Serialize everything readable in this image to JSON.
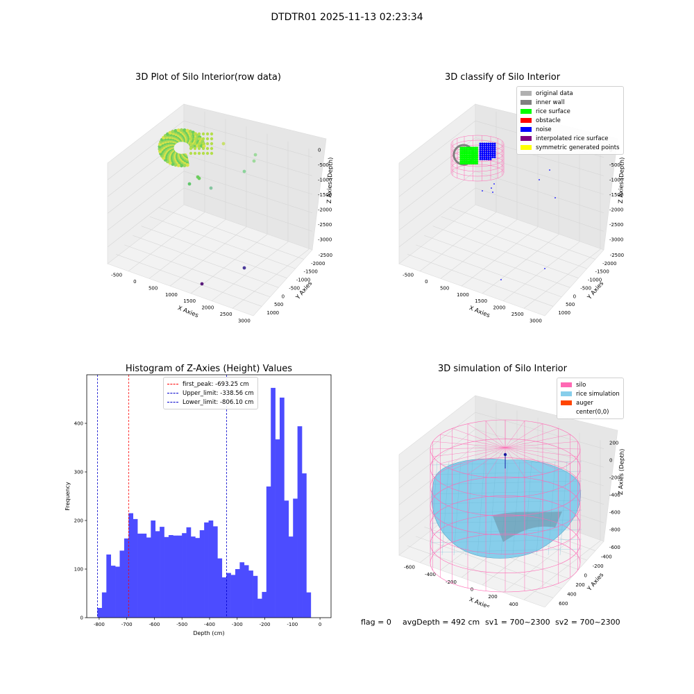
{
  "figure_title": "DTDTR01 2025-11-13 02:23:34",
  "colors": {
    "hist_bar": "#4c4cff",
    "first_peak": "#ff0000",
    "limits": "#0000cc",
    "silo": "#ff69b4",
    "rice": "#87ceeb",
    "auger": "#ff4500"
  },
  "panel1": {
    "title": "3D Plot of Silo Interior(row data)",
    "xlabel": "X Axies",
    "ylabel": "Y Axies",
    "zlabel": "Z Axies (Depth)",
    "xticks": [
      "-500",
      "0",
      "500",
      "1000",
      "1500",
      "2000",
      "2500",
      "3000"
    ],
    "yticks": [
      "1000",
      "500",
      "0",
      "-500",
      "-1000",
      "-1500",
      "-2000",
      "-2500"
    ],
    "zticks": [
      "0",
      "-500",
      "-1000",
      "-1500",
      "-2000",
      "-2500",
      "-3000"
    ]
  },
  "panel2": {
    "title": "3D classify of Silo Interior",
    "xlabel": "X Axies",
    "ylabel": "Y Axies",
    "zlabel": "Z Axies (Depth)",
    "xticks": [
      "-500",
      "0",
      "500",
      "1000",
      "1500",
      "2000",
      "2500",
      "3000"
    ],
    "yticks": [
      "1000",
      "500",
      "0",
      "-500",
      "-1000",
      "-1500",
      "-2000",
      "-2500"
    ],
    "zticks": [
      "0",
      "-500",
      "-1000",
      "-1500",
      "-2000",
      "-2500",
      "-3000"
    ],
    "legend": [
      {
        "label": "original data",
        "color": "#b0b0b0"
      },
      {
        "label": "inner wall",
        "color": "#808080"
      },
      {
        "label": "rice surface",
        "color": "#00ff00"
      },
      {
        "label": "obstacle",
        "color": "#ff0000"
      },
      {
        "label": "noise",
        "color": "#0000ff"
      },
      {
        "label": "interpolated rice surface",
        "color": "#800080"
      },
      {
        "label": "symmetric generated points",
        "color": "#ffff00"
      }
    ]
  },
  "chart_data": {
    "type": "bar",
    "title": "Histogram of Z-Axies (Height) Values",
    "xlabel": "Depth (cm)",
    "ylabel": "Frequency",
    "xlim": [
      -845,
      40
    ],
    "ylim": [
      0,
      500
    ],
    "xticks": [
      -800,
      -700,
      -600,
      -500,
      -400,
      -300,
      -200,
      -100,
      0
    ],
    "yticks": [
      0,
      100,
      200,
      300,
      400
    ],
    "bin_start": -806.1,
    "bin_width": 16.1,
    "values": [
      20,
      52,
      130,
      107,
      105,
      138,
      163,
      215,
      203,
      173,
      173,
      165,
      200,
      178,
      187,
      166,
      170,
      169,
      169,
      174,
      186,
      167,
      164,
      180,
      196,
      200,
      188,
      122,
      83,
      92,
      88,
      100,
      114,
      108,
      97,
      86,
      39,
      53,
      270,
      473,
      367,
      453,
      241,
      167,
      245,
      394,
      297,
      52
    ],
    "lines": [
      {
        "label": "first_peak: -693.25 cm",
        "x": -693.25,
        "color": "#ff0000"
      },
      {
        "label": "Upper_limit: -338.56 cm",
        "x": -338.56,
        "color": "#0000cc"
      },
      {
        "label": "Lower_limit: -806.10 cm",
        "x": -806.1,
        "color": "#0000cc"
      }
    ]
  },
  "panel4": {
    "title": "3D simulation of Silo Interior",
    "xlabel": "X Axies",
    "ylabel": "Y Axies",
    "zlabel": "Z Axies (Depth)",
    "xticks": [
      "-600",
      "-400",
      "-200",
      "0",
      "200",
      "400",
      "600"
    ],
    "yticks": [
      "600",
      "400",
      "200",
      "0",
      "-200",
      "-400",
      "-600"
    ],
    "zticks": [
      "200",
      "0",
      "-200",
      "-400",
      "-600",
      "-800"
    ],
    "legend": [
      {
        "label": "silo",
        "color": "#ff69b4"
      },
      {
        "label": "rice simulation",
        "color": "#87ceeb"
      },
      {
        "label": "auger",
        "color": "#ff4500"
      },
      {
        "label": "center(0,0)",
        "color": ""
      }
    ]
  },
  "status": {
    "flag": "flag = 0",
    "avg_depth": "avgDepth = 492 cm",
    "sv1": "sv1 = 700~2300",
    "sv2": "sv2 = 700~2300"
  }
}
